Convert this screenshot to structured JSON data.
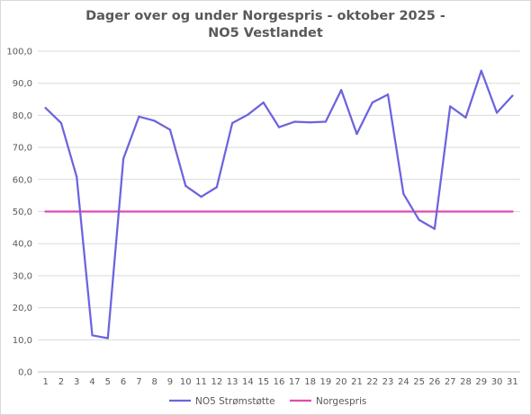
{
  "chart_data": {
    "type": "line",
    "title_lines": [
      "Dager over og under Norgespris - oktober 2025 -",
      "NO5 Vestlandet"
    ],
    "xlabel": "",
    "ylabel": "",
    "categories": [
      "1",
      "2",
      "3",
      "4",
      "5",
      "6",
      "7",
      "8",
      "9",
      "10",
      "11",
      "12",
      "13",
      "14",
      "15",
      "16",
      "17",
      "18",
      "19",
      "20",
      "21",
      "22",
      "23",
      "24",
      "25",
      "26",
      "27",
      "28",
      "29",
      "30",
      "31"
    ],
    "y_ticks": [
      "0,0",
      "10,0",
      "20,0",
      "30,0",
      "40,0",
      "50,0",
      "60,0",
      "70,0",
      "80,0",
      "90,0",
      "100,0"
    ],
    "ylim": [
      0,
      100
    ],
    "grid": true,
    "legend_position": "bottom",
    "series": [
      {
        "name": "NO5 Strømstøtte",
        "color": "#6c63e0",
        "values": [
          82.3,
          77.6,
          60.8,
          11.4,
          10.5,
          66.5,
          79.6,
          78.3,
          75.5,
          58.0,
          54.6,
          57.6,
          77.6,
          80.2,
          84.0,
          76.3,
          78.0,
          77.8,
          78.0,
          87.9,
          74.2,
          84.0,
          86.5,
          55.5,
          47.4,
          44.6,
          82.8,
          79.3,
          93.9,
          80.8,
          86.1
        ]
      },
      {
        "name": "Norgespris",
        "color": "#e04ab0",
        "values": [
          50,
          50,
          50,
          50,
          50,
          50,
          50,
          50,
          50,
          50,
          50,
          50,
          50,
          50,
          50,
          50,
          50,
          50,
          50,
          50,
          50,
          50,
          50,
          50,
          50,
          50,
          50,
          50,
          50,
          50,
          50
        ]
      }
    ]
  }
}
